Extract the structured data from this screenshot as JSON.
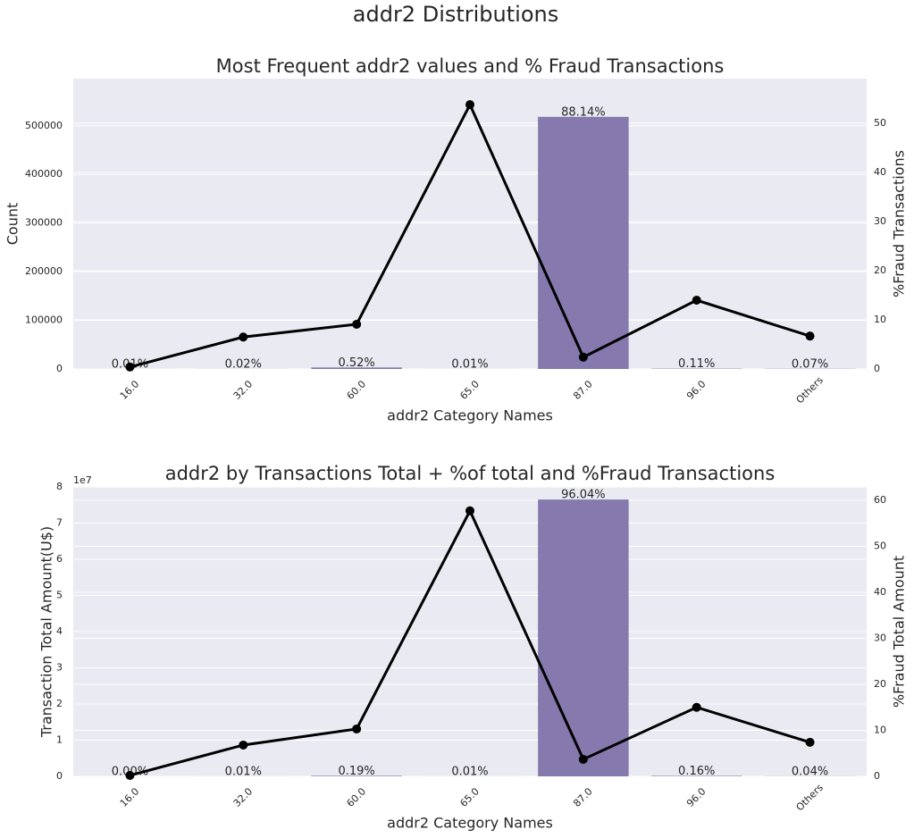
{
  "title": "addr2 Distributions",
  "chart_data": [
    {
      "type": "bar",
      "title": "Most Frequent addr2 values and % Fraud Transactions",
      "xlabel": "addr2 Category Names",
      "ylabel": "Count",
      "y2label": "%Fraud Transactions",
      "categories": [
        "16.0",
        "32.0",
        "60.0",
        "65.0",
        "87.0",
        "96.0",
        "Others"
      ],
      "series": [
        {
          "color": "#8579ad",
          "values": [
            59,
            118,
            3068,
            59,
            518400,
            649,
            413
          ]
        },
        {
          "type": "line",
          "axis": "y2",
          "color": "#000000",
          "values": [
            0.4,
            6.5,
            9.1,
            53.8,
            2.4,
            14.0,
            6.7
          ]
        }
      ],
      "annotations": [
        "0.01%",
        "0.02%",
        "0.52%",
        "0.01%",
        "88.14%",
        "0.11%",
        "0.07%"
      ],
      "ylim": [
        0,
        597000
      ],
      "yticks": [
        0,
        100000,
        200000,
        300000,
        400000,
        500000
      ],
      "y2lim": [
        0,
        59.1
      ],
      "y2ticks": [
        0,
        10,
        20,
        30,
        40,
        50
      ],
      "grid": true
    },
    {
      "type": "bar",
      "title": "addr2 by Transactions Total + %of total and %Fraud Transactions",
      "xlabel": "addr2 Category Names",
      "ylabel": "Transaction Total Amount(U$)",
      "y2label": "%Fraud Total Amount",
      "y_offset_label": "1e7",
      "categories": [
        "16.0",
        "32.0",
        "60.0",
        "65.0",
        "87.0",
        "96.0",
        "Others"
      ],
      "series": [
        {
          "color": "#8579ad",
          "values": [
            2000,
            8000,
            151000,
            8000,
            76500000,
            127000,
            32000
          ]
        },
        {
          "type": "line",
          "axis": "y2",
          "color": "#000000",
          "values": [
            0.2,
            6.8,
            10.3,
            57.7,
            3.7,
            15.0,
            7.4
          ]
        }
      ],
      "annotations": [
        "0.00%",
        "0.01%",
        "0.19%",
        "0.01%",
        "96.04%",
        "0.16%",
        "0.04%"
      ],
      "ylim": [
        0,
        80000000
      ],
      "yticks": [
        {
          "value": 0,
          "label": "0"
        },
        {
          "value": 10000000,
          "label": "1"
        },
        {
          "value": 20000000,
          "label": "2"
        },
        {
          "value": 30000000,
          "label": "3"
        },
        {
          "value": 40000000,
          "label": "4"
        },
        {
          "value": 50000000,
          "label": "5"
        },
        {
          "value": 60000000,
          "label": "6"
        },
        {
          "value": 70000000,
          "label": "7"
        },
        {
          "value": 80000000,
          "label": "8"
        }
      ],
      "y2lim": [
        0,
        62.9
      ],
      "y2ticks": [
        0,
        10,
        20,
        30,
        40,
        50,
        60
      ],
      "grid": true
    }
  ]
}
